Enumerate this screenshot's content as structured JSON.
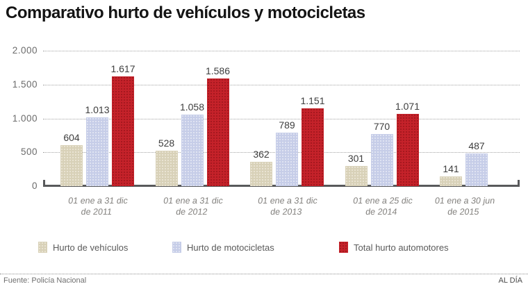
{
  "title": "Comparativo hurto de vehículos y motocicletas",
  "chart_data": {
    "type": "bar",
    "title": "Comparativo hurto de vehículos y motocicletas",
    "categories": [
      [
        "01 ene a 31 dic",
        "de 2011"
      ],
      [
        "01 ene a 31 dic",
        "de 2012"
      ],
      [
        "01 ene a 31 dic",
        "de 2013"
      ],
      [
        "01 ene a 25 dic",
        "de 2014"
      ],
      [
        "01 ene a 30 jun",
        "de 2015"
      ]
    ],
    "series": [
      {
        "name": "Hurto de vehículos",
        "values": [
          604,
          528,
          362,
          301,
          141
        ],
        "labels": [
          "604",
          "528",
          "362",
          "301",
          "141"
        ]
      },
      {
        "name": "Hurto de motocicletas",
        "values": [
          1013,
          1058,
          789,
          770,
          487
        ],
        "labels": [
          "1.013",
          "1.058",
          "789",
          "770",
          "487"
        ]
      },
      {
        "name": "Total hurto automotores",
        "values": [
          1617,
          1586,
          1151,
          1071,
          null
        ],
        "labels": [
          "1.617",
          "1.586",
          "1.151",
          "1.071",
          null
        ]
      }
    ],
    "ylim": [
      0,
      2000
    ],
    "yticks": [
      {
        "value": 0,
        "label": "0"
      },
      {
        "value": 500,
        "label": "500"
      },
      {
        "value": 1000,
        "label": "1.000"
      },
      {
        "value": 1500,
        "label": "1.500"
      },
      {
        "value": 2000,
        "label": "2.000"
      }
    ],
    "grid": true,
    "legend_position": "bottom"
  },
  "colors": {
    "series": [
      {
        "base": "#d8d1b8",
        "dot": "#efe9da"
      },
      {
        "base": "#c6cde8",
        "dot": "#e7eaf6"
      },
      {
        "base": "#c5222a",
        "dot": "#9c141b"
      }
    ],
    "grid": "#a3a3a3",
    "baseline": "#58595b",
    "value_label": "#3d3d3d",
    "axis_label": "#6b6b6b",
    "category_label": "#83817e",
    "legend_label": "#5a5a5a"
  },
  "footer": {
    "source": "Fuente: Policía Nacional",
    "brand": "AL DÍA"
  }
}
